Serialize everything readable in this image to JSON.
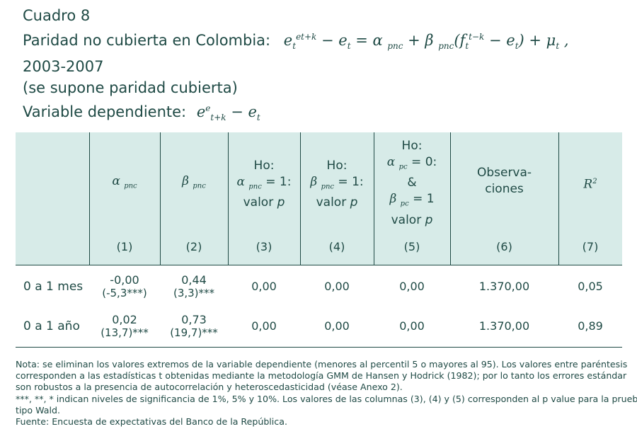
{
  "title": {
    "line1": "Cuadro 8",
    "line2_text": "Paridad no cubierta en Colombia:",
    "line3": "2003-2007",
    "line4": "(se supone paridad cubierta)",
    "line5_text": "Variable dependiente:"
  },
  "table": {
    "headers": [
      {
        "label": "",
        "num": ""
      },
      {
        "label": "α pnc",
        "num": "(1)"
      },
      {
        "label": "β pnc",
        "num": "(2)"
      },
      {
        "label": "Ho: α pnc = 1: valor p",
        "num": "(3)"
      },
      {
        "label": "Ho: β pnc = 1: valor p",
        "num": "(4)"
      },
      {
        "label": "Ho: α pc = 0: & β pc = 1 valor p",
        "num": "(5)"
      },
      {
        "label": "Observa- ciones",
        "num": "(6)"
      },
      {
        "label": "R2",
        "num": "(7)"
      }
    ],
    "rows": [
      {
        "label": "0 a 1 mes",
        "alpha": "-0,00",
        "alpha_t": "(-5,3***)",
        "beta": "0,44",
        "beta_t": "(3,3)***",
        "p3": "0,00",
        "p4": "0,00",
        "p5": "0,00",
        "obs": "1.370,00",
        "r2": "0,05"
      },
      {
        "label": "0 a 1 año",
        "alpha": "0,02",
        "alpha_t": "(13,7)***",
        "beta": "0,73",
        "beta_t": "(19,7)***",
        "p3": "0,00",
        "p4": "0,00",
        "p5": "0,00",
        "obs": "1.370,00",
        "r2": "0,89"
      }
    ]
  },
  "notes": {
    "line1": "Nota: se eliminan los valores extremos de la variable dependiente (menores al percentil 5 o mayores al 95). Los valores entre paréntesis",
    "line2": "corresponden a las estadísticas t obtenidas mediante la metodología GMM de Hansen y Hodrick (1982); por lo tanto los errores estándar",
    "line3": "son robustos a la presencia de autocorrelación y heteroscedasticidad (véase Anexo 2).",
    "line4": "***, **, * indican niveles de significancia de 1%, 5% y 10%. Los valores de las columnas (3), (4) y (5) corresponden al p value para la prueba",
    "line5": "tipo Wald.",
    "line6": "Fuente: Encuesta de expectativas del Banco de la República."
  }
}
